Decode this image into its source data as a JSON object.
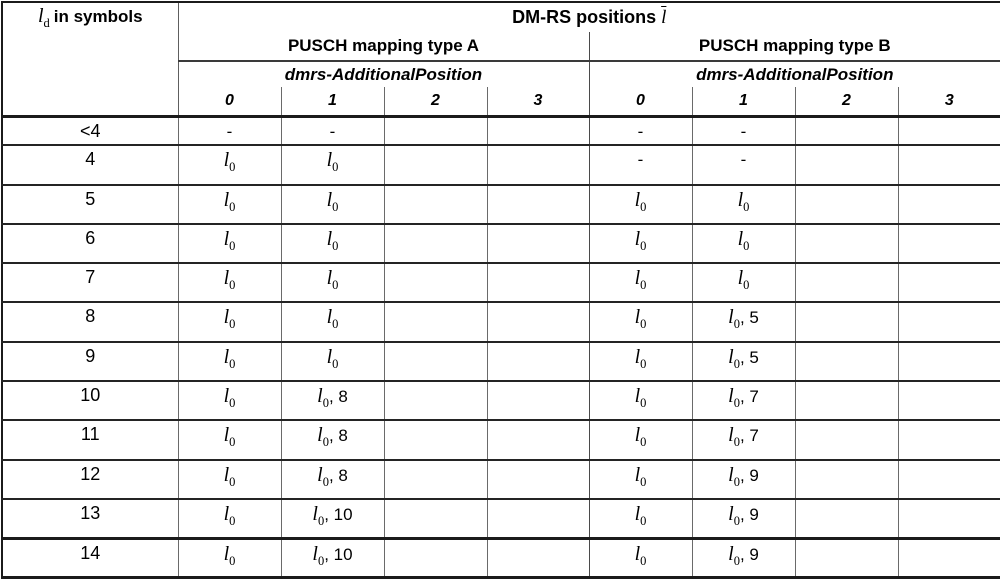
{
  "colors": {
    "background": "#ffffff",
    "text": "#000000",
    "border_heavy": "#1b1b1b",
    "border_light": "#6a6a6a"
  },
  "table": {
    "corner_header": {
      "math_l": "l",
      "math_sub": "d",
      "label": "in symbols"
    },
    "title": {
      "label": "DM-RS positions",
      "math_l_bar": "l"
    },
    "groups": [
      {
        "label": "PUSCH mapping type A"
      },
      {
        "label": "PUSCH mapping type B"
      }
    ],
    "subheader": "dmrs-AdditionalPosition",
    "position_cols": [
      "0",
      "1",
      "2",
      "3"
    ],
    "math_note": "cell value 'l0' denotes italic l with subscript 0",
    "rows": [
      {
        "ld": "<4",
        "a": [
          "-",
          "-",
          "",
          ""
        ],
        "b": [
          "-",
          "-",
          "",
          ""
        ]
      },
      {
        "ld": "4",
        "a": [
          "l0",
          "l0",
          "",
          ""
        ],
        "b": [
          "-",
          "-",
          "",
          ""
        ]
      },
      {
        "ld": "5",
        "a": [
          "l0",
          "l0",
          "",
          ""
        ],
        "b": [
          "l0",
          "l0",
          "",
          ""
        ]
      },
      {
        "ld": "6",
        "a": [
          "l0",
          "l0",
          "",
          ""
        ],
        "b": [
          "l0",
          "l0",
          "",
          ""
        ]
      },
      {
        "ld": "7",
        "a": [
          "l0",
          "l0",
          "",
          ""
        ],
        "b": [
          "l0",
          "l0",
          "",
          ""
        ]
      },
      {
        "ld": "8",
        "a": [
          "l0",
          "l0",
          "",
          ""
        ],
        "b": [
          "l0",
          "l0, 5",
          "",
          ""
        ]
      },
      {
        "ld": "9",
        "a": [
          "l0",
          "l0",
          "",
          ""
        ],
        "b": [
          "l0",
          "l0, 5",
          "",
          ""
        ]
      },
      {
        "ld": "10",
        "a": [
          "l0",
          "l0, 8",
          "",
          ""
        ],
        "b": [
          "l0",
          "l0, 7",
          "",
          ""
        ]
      },
      {
        "ld": "11",
        "a": [
          "l0",
          "l0, 8",
          "",
          ""
        ],
        "b": [
          "l0",
          "l0, 7",
          "",
          ""
        ]
      },
      {
        "ld": "12",
        "a": [
          "l0",
          "l0, 8",
          "",
          ""
        ],
        "b": [
          "l0",
          "l0, 9",
          "",
          ""
        ]
      },
      {
        "ld": "13",
        "a": [
          "l0",
          "l0, 10",
          "",
          ""
        ],
        "b": [
          "l0",
          "l0, 9",
          "",
          ""
        ]
      },
      {
        "ld": "14",
        "a": [
          "l0",
          "l0, 10",
          "",
          ""
        ],
        "b": [
          "l0",
          "l0, 9",
          "",
          ""
        ]
      }
    ]
  }
}
